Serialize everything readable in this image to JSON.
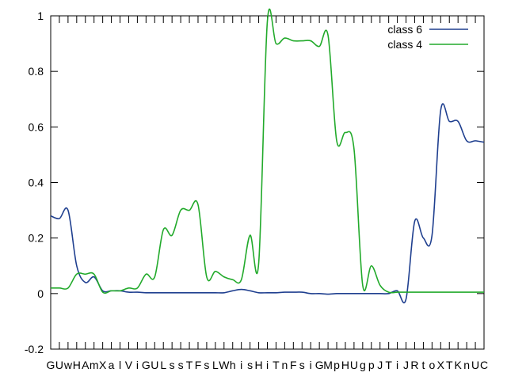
{
  "chart_data": {
    "type": "line",
    "title": "",
    "xlabel": "",
    "ylabel": "",
    "ylim": [
      -0.2,
      1.0
    ],
    "yticks": [
      -0.2,
      0,
      0.2,
      0.4,
      0.6,
      0.8,
      1
    ],
    "ytick_labels": [
      "-0.2",
      "0",
      "0.2",
      "0.4",
      "0.6",
      "0.8",
      "1"
    ],
    "categories": [
      "G",
      "U",
      "w",
      "H",
      "A",
      "m",
      "X",
      "a",
      "l",
      "V",
      "i",
      "G",
      "U",
      "L",
      "s",
      "s",
      "T",
      "F",
      "s",
      "L",
      "W",
      "h",
      "i",
      "s",
      "H",
      "i",
      "T",
      "n",
      "F",
      "s",
      "i",
      "G",
      "M",
      "p",
      "H",
      "U",
      "g",
      "p",
      "J",
      "T",
      "i",
      "J",
      "R",
      "t",
      "o",
      "X",
      "T",
      "K",
      "n",
      "U",
      "C"
    ],
    "legend_position": "top-right",
    "grid": false,
    "series": [
      {
        "name": "class 6",
        "color": "#1f3f8f",
        "values": [
          0.28,
          0.27,
          0.3,
          0.1,
          0.04,
          0.06,
          0.01,
          0.01,
          0.01,
          0.005,
          0.005,
          0.003,
          0.003,
          0.003,
          0.003,
          0.003,
          0.003,
          0.003,
          0.003,
          0.003,
          0.003,
          0.01,
          0.015,
          0.01,
          0.003,
          0.003,
          0.003,
          0.005,
          0.005,
          0.005,
          0.0,
          0.0,
          -0.002,
          0.0,
          0.0,
          0.0,
          0.0,
          0.0,
          0.0,
          0.0,
          0.01,
          -0.02,
          0.26,
          0.2,
          0.21,
          0.66,
          0.62,
          0.62,
          0.55,
          0.55,
          0.545
        ]
      },
      {
        "name": "class 4",
        "color": "#22aa2b",
        "values": [
          0.02,
          0.02,
          0.02,
          0.07,
          0.07,
          0.07,
          0.005,
          0.01,
          0.01,
          0.02,
          0.02,
          0.07,
          0.06,
          0.23,
          0.21,
          0.3,
          0.3,
          0.32,
          0.06,
          0.08,
          0.06,
          0.05,
          0.05,
          0.21,
          0.11,
          0.98,
          0.9,
          0.92,
          0.91,
          0.91,
          0.91,
          0.89,
          0.93,
          0.55,
          0.58,
          0.52,
          0.03,
          0.1,
          0.03,
          0.005,
          0.005,
          0.005,
          0.005,
          0.005,
          0.005,
          0.005,
          0.005,
          0.005,
          0.005,
          0.005,
          0.005
        ]
      }
    ]
  }
}
